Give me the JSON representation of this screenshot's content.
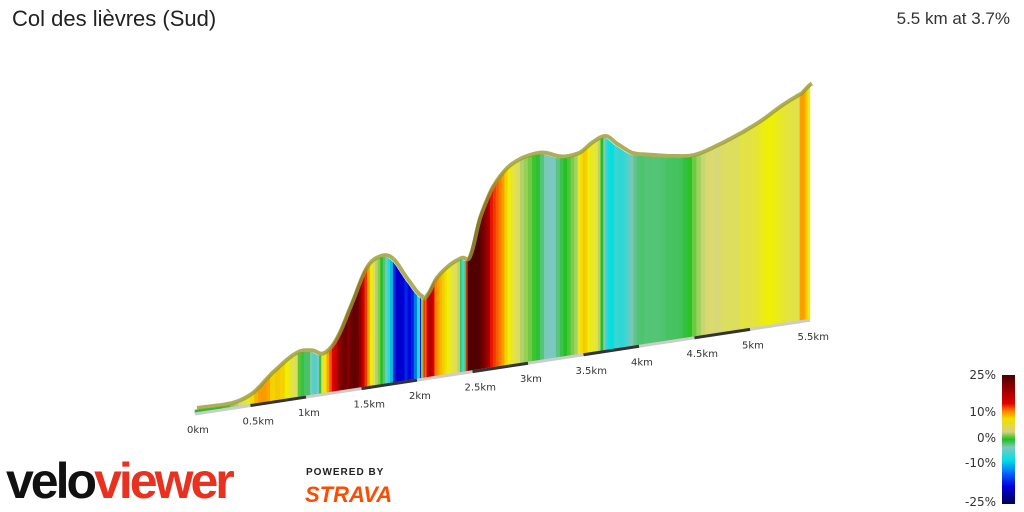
{
  "header": {
    "title": "Col des lièvres (Sud)",
    "summary": "5.5 km at 3.7%"
  },
  "branding": {
    "logo_part1": "velo",
    "logo_part2": "viewer",
    "powered_by": "POWERED BY",
    "strava": "STRAVA"
  },
  "chart_data": {
    "type": "area",
    "style": "3d elevation profile colored by gradient",
    "xlabel": "",
    "ylabel": "",
    "x_ticks": [
      "0km",
      "0.5km",
      "1km",
      "1.5km",
      "2km",
      "2.5km",
      "3km",
      "3.5km",
      "4km",
      "4.5km",
      "5km",
      "5.5km"
    ],
    "x_tick_values": [
      0,
      0.5,
      1,
      1.5,
      2,
      2.5,
      3,
      3.5,
      4,
      4.5,
      5,
      5.5
    ],
    "distance_km": [
      0,
      0.32,
      0.5,
      0.68,
      0.9,
      1.04,
      1.14,
      1.26,
      1.4,
      1.53,
      1.65,
      1.76,
      1.89,
      2.03,
      2.07,
      2.16,
      2.27,
      2.39,
      2.46,
      2.55,
      2.66,
      2.79,
      2.93,
      3.11,
      3.29,
      3.45,
      3.56,
      3.68,
      3.78,
      3.92,
      4.08,
      4.28,
      4.48,
      4.68,
      4.91,
      5.09,
      5.27,
      5.45,
      5.54
    ],
    "relative_elevation_m": [
      2.6,
      2.3,
      8,
      23,
      37,
      37,
      33,
      44,
      73,
      101,
      109,
      106,
      87,
      69,
      69,
      83,
      92,
      97,
      97,
      129,
      153,
      168,
      175,
      177,
      171,
      172,
      179,
      183,
      175,
      165,
      161,
      157,
      155,
      160,
      168,
      176,
      186,
      194,
      201
    ],
    "legend": {
      "labels": [
        "25%",
        "10%",
        "0%",
        "-10%",
        "-25%"
      ],
      "range": [
        -25,
        25
      ]
    },
    "gradient_colors": {
      "-25": "#000050",
      "-15": "#0000e0",
      "-10": "#00e0e0",
      "-4": "#80c8c0",
      "0": "#20c020",
      "3": "#d8d878",
      "6": "#f0f000",
      "10": "#ff8000",
      "15": "#e00000",
      "25": "#500000"
    }
  }
}
